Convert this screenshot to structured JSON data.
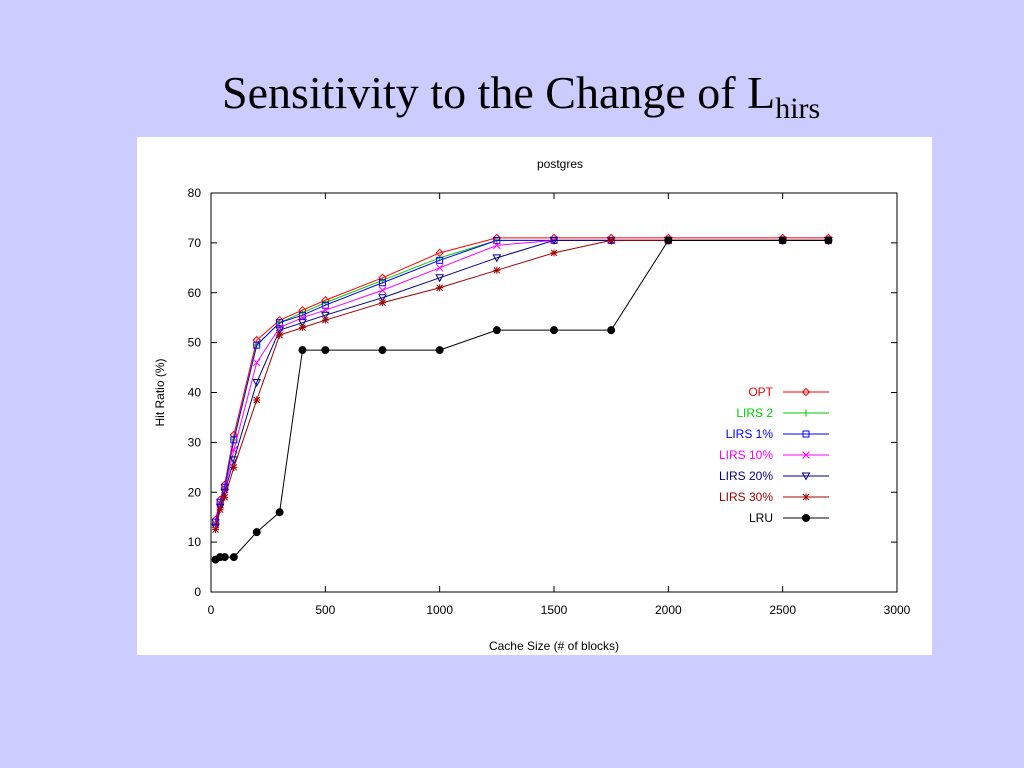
{
  "slide": {
    "title_main": "Sensitivity to the Change of L",
    "title_sub": "hirs"
  },
  "chart_data": {
    "type": "line",
    "title": "postgres",
    "xlabel": "Cache Size (# of blocks)",
    "ylabel": "Hit Ratio (%)",
    "xlim": [
      0,
      3000
    ],
    "ylim": [
      0,
      80
    ],
    "xticks": [
      0,
      500,
      1000,
      1500,
      2000,
      2500,
      3000
    ],
    "yticks": [
      0,
      10,
      20,
      30,
      40,
      50,
      60,
      70,
      80
    ],
    "grid": false,
    "legend_position": "right",
    "series": [
      {
        "name": "OPT",
        "color": "#ff0000",
        "marker": "diamond",
        "x": [
          20,
          40,
          60,
          100,
          200,
          300,
          400,
          500,
          750,
          1000,
          1250,
          1500,
          1750,
          2000,
          2500,
          2700
        ],
        "y": [
          14.5,
          18.5,
          21.5,
          31.5,
          50.5,
          54.5,
          56.5,
          58.5,
          63,
          68,
          71,
          71,
          71,
          71,
          71,
          71
        ]
      },
      {
        "name": "LIRS 2",
        "color": "#00cc00",
        "marker": "plus",
        "x": [
          20,
          40,
          60,
          100,
          200,
          300,
          400,
          500,
          750,
          1000,
          1250,
          1500,
          1750,
          2000,
          2500,
          2700
        ],
        "y": [
          14,
          18,
          21,
          30.5,
          49.5,
          54,
          56,
          58,
          62.5,
          67,
          70.5,
          70.5,
          70.5,
          70.5,
          70.5,
          70.5
        ]
      },
      {
        "name": "LIRS 1%",
        "color": "#0000ff",
        "marker": "square",
        "x": [
          20,
          40,
          60,
          100,
          200,
          300,
          400,
          500,
          750,
          1000,
          1250,
          1500,
          1750,
          2000,
          2500,
          2700
        ],
        "y": [
          14,
          18,
          21,
          30.5,
          49.5,
          54,
          55.5,
          57.5,
          62,
          66.5,
          70.5,
          70.5,
          70.5,
          70.5,
          70.5,
          70.5
        ]
      },
      {
        "name": "LIRS 10%",
        "color": "#ff00ff",
        "marker": "x",
        "x": [
          20,
          40,
          60,
          100,
          200,
          300,
          400,
          500,
          750,
          1000,
          1250,
          1500,
          1750,
          2000,
          2500,
          2700
        ],
        "y": [
          13.5,
          17.5,
          20.5,
          28.5,
          46,
          53,
          55,
          56.5,
          60.5,
          65,
          69.5,
          70.5,
          70.5,
          70.5,
          70.5,
          70.5
        ]
      },
      {
        "name": "LIRS 20%",
        "color": "#000080",
        "marker": "triangle-down",
        "x": [
          20,
          40,
          60,
          100,
          200,
          300,
          400,
          500,
          750,
          1000,
          1250,
          1500,
          1750,
          2000,
          2500,
          2700
        ],
        "y": [
          13,
          17,
          20,
          26.5,
          42,
          52.5,
          54,
          55.5,
          59,
          63,
          67,
          70.5,
          70.5,
          70.5,
          70.5,
          70.5
        ]
      },
      {
        "name": "LIRS 30%",
        "color": "#a00000",
        "marker": "star",
        "x": [
          20,
          40,
          60,
          100,
          200,
          300,
          400,
          500,
          750,
          1000,
          1250,
          1500,
          1750,
          2000,
          2500,
          2700
        ],
        "y": [
          12.5,
          16.5,
          19,
          25,
          38.5,
          51.5,
          53,
          54.5,
          58,
          61,
          64.5,
          68,
          70.5,
          70.5,
          70.5,
          70.5
        ]
      },
      {
        "name": "LRU",
        "color": "#000000",
        "marker": "dot",
        "x": [
          20,
          40,
          60,
          100,
          200,
          300,
          400,
          500,
          750,
          1000,
          1250,
          1500,
          1750,
          2000,
          2500,
          2700
        ],
        "y": [
          6.5,
          7,
          7,
          7,
          12,
          16,
          48.5,
          48.5,
          48.5,
          48.5,
          52.5,
          52.5,
          52.5,
          70.5,
          70.5,
          70.5
        ]
      }
    ]
  }
}
